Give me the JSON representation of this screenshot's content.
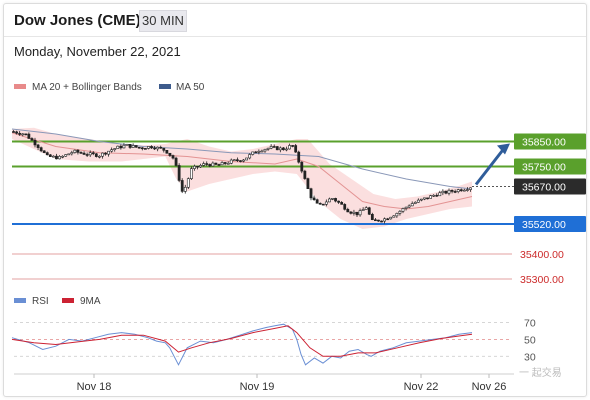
{
  "header": {
    "title": "Dow Jones (CME)",
    "timeframe": "30 MIN",
    "date": "Monday, November 22, 2021"
  },
  "legend": {
    "bollinger": {
      "label": "MA 20 + Bollinger Bands",
      "color": "#e88a8a"
    },
    "ma50": {
      "label": "MA 50",
      "color": "#3d5b8c"
    }
  },
  "rsi_legend": {
    "rsi": {
      "label": "RSI",
      "color": "#6a8fd4"
    },
    "ma9": {
      "label": "9MA",
      "color": "#cc2233"
    }
  },
  "chart_data": {
    "type": "candlestick",
    "ylim": [
      35240,
      35960
    ],
    "price_levels": [
      {
        "label": "35850.00",
        "value": 35850,
        "color": "#5aa02c",
        "kind": "resistance"
      },
      {
        "label": "35750.00",
        "value": 35750,
        "color": "#5aa02c",
        "kind": "resistance"
      },
      {
        "label": "35670.00",
        "value": 35670,
        "color": "#2b2b2b",
        "kind": "current"
      },
      {
        "label": "35520.00",
        "value": 35520,
        "color": "#1f6fd6",
        "kind": "pivot"
      },
      {
        "label": "35400.00",
        "value": 35400,
        "color": "#e3a0a0",
        "kind": "support"
      },
      {
        "label": "35300.00",
        "value": 35300,
        "color": "#e3a0a0",
        "kind": "support"
      }
    ],
    "xtick_labels": [
      "Nov 18",
      "Nov 19",
      "Nov 22",
      "Nov 26"
    ],
    "price_path": [
      [
        0,
        35890
      ],
      [
        6,
        35880
      ],
      [
        12,
        35830
      ],
      [
        16,
        35790
      ],
      [
        22,
        35785
      ],
      [
        28,
        35810
      ],
      [
        34,
        35800
      ],
      [
        40,
        35795
      ],
      [
        46,
        35820
      ],
      [
        52,
        35835
      ],
      [
        58,
        35825
      ],
      [
        64,
        35830
      ],
      [
        70,
        35815
      ],
      [
        74,
        35780
      ],
      [
        78,
        35640
      ],
      [
        82,
        35740
      ],
      [
        88,
        35760
      ],
      [
        94,
        35755
      ],
      [
        100,
        35770
      ],
      [
        106,
        35780
      ],
      [
        112,
        35815
      ],
      [
        118,
        35825
      ],
      [
        124,
        35820
      ],
      [
        128,
        35835
      ],
      [
        132,
        35745
      ],
      [
        136,
        35635
      ],
      [
        140,
        35590
      ],
      [
        146,
        35625
      ],
      [
        150,
        35600
      ],
      [
        154,
        35570
      ],
      [
        158,
        35560
      ],
      [
        162,
        35590
      ],
      [
        164,
        35530
      ],
      [
        170,
        35540
      ],
      [
        176,
        35565
      ],
      [
        182,
        35600
      ],
      [
        188,
        35620
      ],
      [
        194,
        35640
      ],
      [
        200,
        35650
      ],
      [
        206,
        35660
      ],
      [
        210,
        35670
      ]
    ],
    "ma20": [
      [
        0,
        35885
      ],
      [
        20,
        35830
      ],
      [
        40,
        35805
      ],
      [
        60,
        35800
      ],
      [
        80,
        35790
      ],
      [
        100,
        35770
      ],
      [
        120,
        35760
      ],
      [
        130,
        35780
      ],
      [
        140,
        35750
      ],
      [
        150,
        35680
      ],
      [
        160,
        35610
      ],
      [
        170,
        35590
      ],
      [
        180,
        35580
      ],
      [
        190,
        35590
      ],
      [
        200,
        35610
      ],
      [
        210,
        35630
      ]
    ],
    "ma50": [
      [
        0,
        35900
      ],
      [
        20,
        35880
      ],
      [
        40,
        35850
      ],
      [
        60,
        35830
      ],
      [
        80,
        35820
      ],
      [
        100,
        35805
      ],
      [
        120,
        35800
      ],
      [
        140,
        35790
      ],
      [
        160,
        35740
      ],
      [
        180,
        35700
      ],
      [
        200,
        35670
      ],
      [
        210,
        35660
      ]
    ],
    "bollinger_upper": [
      [
        0,
        35900
      ],
      [
        10,
        35905
      ],
      [
        20,
        35880
      ],
      [
        35,
        35860
      ],
      [
        50,
        35840
      ],
      [
        60,
        35835
      ],
      [
        70,
        35840
      ],
      [
        80,
        35860
      ],
      [
        90,
        35830
      ],
      [
        100,
        35810
      ],
      [
        110,
        35820
      ],
      [
        120,
        35840
      ],
      [
        130,
        35860
      ],
      [
        135,
        35860
      ],
      [
        145,
        35760
      ],
      [
        155,
        35700
      ],
      [
        165,
        35640
      ],
      [
        175,
        35620
      ],
      [
        185,
        35630
      ],
      [
        195,
        35650
      ],
      [
        205,
        35675
      ],
      [
        210,
        35690
      ]
    ],
    "bollinger_lower": [
      [
        0,
        35860
      ],
      [
        10,
        35820
      ],
      [
        20,
        35780
      ],
      [
        35,
        35770
      ],
      [
        50,
        35770
      ],
      [
        60,
        35780
      ],
      [
        70,
        35790
      ],
      [
        75,
        35700
      ],
      [
        80,
        35650
      ],
      [
        90,
        35680
      ],
      [
        100,
        35700
      ],
      [
        110,
        35720
      ],
      [
        120,
        35730
      ],
      [
        130,
        35720
      ],
      [
        140,
        35610
      ],
      [
        150,
        35540
      ],
      [
        160,
        35500
      ],
      [
        170,
        35510
      ],
      [
        180,
        35540
      ],
      [
        190,
        35560
      ],
      [
        200,
        35580
      ],
      [
        210,
        35590
      ]
    ],
    "rsi_ylim": [
      15,
      80
    ],
    "rsi_levels": [
      70,
      50,
      30
    ],
    "rsi": [
      [
        0,
        52
      ],
      [
        8,
        46
      ],
      [
        14,
        38
      ],
      [
        20,
        42
      ],
      [
        26,
        50
      ],
      [
        32,
        48
      ],
      [
        38,
        52
      ],
      [
        44,
        56
      ],
      [
        50,
        58
      ],
      [
        56,
        56
      ],
      [
        62,
        52
      ],
      [
        66,
        48
      ],
      [
        70,
        46
      ],
      [
        72,
        40
      ],
      [
        74,
        30
      ],
      [
        76,
        20
      ],
      [
        80,
        40
      ],
      [
        86,
        48
      ],
      [
        92,
        46
      ],
      [
        98,
        50
      ],
      [
        104,
        55
      ],
      [
        110,
        60
      ],
      [
        116,
        64
      ],
      [
        120,
        66
      ],
      [
        124,
        68
      ],
      [
        128,
        62
      ],
      [
        130,
        50
      ],
      [
        132,
        32
      ],
      [
        134,
        20
      ],
      [
        138,
        28
      ],
      [
        142,
        22
      ],
      [
        146,
        30
      ],
      [
        150,
        28
      ],
      [
        154,
        36
      ],
      [
        158,
        38
      ],
      [
        162,
        32
      ],
      [
        164,
        30
      ],
      [
        168,
        36
      ],
      [
        174,
        40
      ],
      [
        180,
        46
      ],
      [
        186,
        48
      ],
      [
        192,
        50
      ],
      [
        198,
        52
      ],
      [
        204,
        56
      ],
      [
        210,
        58
      ]
    ],
    "rsi_ma9": [
      [
        0,
        50
      ],
      [
        10,
        46
      ],
      [
        20,
        44
      ],
      [
        30,
        47
      ],
      [
        40,
        50
      ],
      [
        50,
        55
      ],
      [
        60,
        55
      ],
      [
        70,
        48
      ],
      [
        76,
        35
      ],
      [
        82,
        40
      ],
      [
        90,
        46
      ],
      [
        100,
        51
      ],
      [
        110,
        58
      ],
      [
        120,
        63
      ],
      [
        126,
        66
      ],
      [
        130,
        58
      ],
      [
        136,
        40
      ],
      [
        142,
        30
      ],
      [
        150,
        30
      ],
      [
        158,
        34
      ],
      [
        166,
        34
      ],
      [
        176,
        40
      ],
      [
        186,
        46
      ],
      [
        196,
        51
      ],
      [
        204,
        54
      ],
      [
        210,
        56
      ]
    ]
  }
}
